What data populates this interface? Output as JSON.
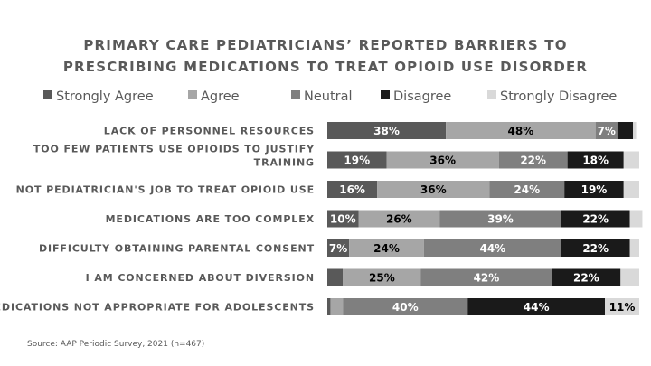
{
  "chart_data": {
    "type": "bar",
    "orientation": "horizontal",
    "stacked": "percent",
    "title": "PRIMARY CARE PEDIATRICIANS’ REPORTED BARRIERS TO PRESCRIBING MEDICATIONS TO TREAT OPIOID USE DISORDER",
    "title_lines": [
      "PRIMARY CARE PEDIATRICIANS’ REPORTED BARRIERS TO",
      "PRESCRIBING MEDICATIONS TO TREAT OPIOID USE DISORDER"
    ],
    "legend_position": "top",
    "grid": false,
    "xlim": [
      0,
      100
    ],
    "categories": [
      {
        "label": "LACK OF PERSONNEL RESOURCES",
        "lines": [
          "LACK OF PERSONNEL RESOURCES"
        ]
      },
      {
        "label": "TOO FEW PATIENTS USE OPIOIDS TO JUSTIFY TRAINING",
        "lines": [
          "TOO FEW PATIENTS USE OPIOIDS TO JUSTIFY",
          "TRAINING"
        ]
      },
      {
        "label": "NOT PEDIATRICIAN'S JOB TO TREAT OPIOID USE",
        "lines": [
          "NOT PEDIATRICIAN'S JOB TO TREAT OPIOID USE"
        ]
      },
      {
        "label": "MEDICATIONS ARE TOO COMPLEX",
        "lines": [
          "MEDICATIONS ARE TOO COMPLEX"
        ]
      },
      {
        "label": "DIFFICULTY OBTAINING PARENTAL CONSENT",
        "lines": [
          "DIFFICULTY OBTAINING PARENTAL CONSENT"
        ]
      },
      {
        "label": "I AM CONCERNED ABOUT DIVERSION",
        "lines": [
          "I AM CONCERNED ABOUT DIVERSION"
        ]
      },
      {
        "label": "MEDICATIONS NOT APPROPRIATE FOR ADOLESCENTS",
        "lines": [
          "MEDICATIONS NOT APPROPRIATE FOR ADOLESCENTS"
        ]
      }
    ],
    "series": [
      {
        "name": "Strongly Agree",
        "color": "#595959",
        "label_color": "#ffffff",
        "values": [
          38,
          19,
          16,
          10,
          7,
          5,
          1
        ],
        "labels": [
          "38%",
          "19%",
          "16%",
          "10%",
          "7%",
          "",
          ""
        ]
      },
      {
        "name": "Agree",
        "color": "#a6a6a6",
        "label_color": "#000000",
        "values": [
          48,
          36,
          36,
          26,
          24,
          25,
          4
        ],
        "labels": [
          "48%",
          "36%",
          "36%",
          "26%",
          "24%",
          "25%",
          ""
        ]
      },
      {
        "name": "Neutral",
        "color": "#7f7f7f",
        "label_color": "#ffffff",
        "values": [
          7,
          22,
          24,
          39,
          44,
          42,
          40
        ],
        "labels": [
          "7%",
          "22%",
          "24%",
          "39%",
          "44%",
          "42%",
          "40%"
        ]
      },
      {
        "name": "Disagree",
        "color": "#1a1a1a",
        "label_color": "#ffffff",
        "values": [
          5,
          18,
          19,
          22,
          22,
          22,
          44
        ],
        "labels": [
          "",
          "18%",
          "19%",
          "22%",
          "22%",
          "22%",
          "44%"
        ]
      },
      {
        "name": "Strongly Disagree",
        "color": "#d9d9d9",
        "label_color": "#000000",
        "values": [
          1,
          5,
          5,
          4,
          3,
          6,
          11
        ],
        "labels": [
          "",
          "",
          "",
          "",
          "",
          "",
          "11%"
        ]
      }
    ],
    "source": "Source: AAP Periodic Survey, 2021 (n=467)"
  }
}
